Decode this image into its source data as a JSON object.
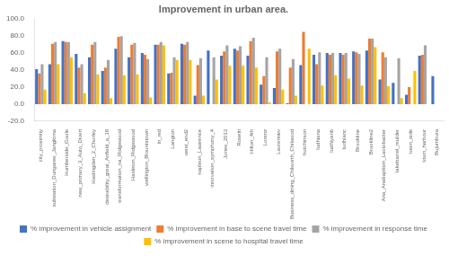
{
  "chart_data": {
    "type": "bar",
    "title": "Improvement in urban area.",
    "categories": [
      "city_proximity",
      "substation_Dungaree_Jangkirna",
      "Humberside_Goole",
      "new_primary_3_Auto_Divert",
      "Haslingden_2_Chorley",
      "desirability_great_Anfield_a_18",
      "transformation_na_Ridgewood",
      "Hasleton_Ridgewood",
      "wellington_Blountstown",
      "in_red",
      "Langton",
      "west_end2",
      "napleon_Lawrence",
      "innovation_symphony_4",
      "Jones_2013",
      "Rosetti",
      "Hilton_4th",
      "Lorenz",
      "Lavrentiev",
      "Business_dining_Chilworth_Chilwood",
      "hutchinson",
      "ludhiana",
      "ludhiyanb",
      "ludhianc",
      "Brookline",
      "Brookline2",
      "Ana_Anabaptism_Lactobacter",
      "lakebarrel_mulder",
      "town_side",
      "town_harbour",
      "Bujumbura"
    ],
    "series": [
      {
        "name": "% improvement in vehicle assignment",
        "color": "#4472c4",
        "values": [
          41,
          47,
          74,
          59,
          55,
          39,
          65,
          55,
          60,
          70,
          36,
          71,
          10,
          63,
          57,
          65,
          57,
          23,
          19,
          1,
          46,
          58,
          60,
          60,
          62,
          63,
          29,
          25,
          11,
          57,
          33
        ]
      },
      {
        "name": "% improvement in base to scene travel time",
        "color": "#ed7d31",
        "values": [
          36,
          71,
          73,
          43,
          70,
          43,
          79,
          70,
          58,
          70,
          37,
          70,
          46,
          0,
          62,
          63,
          74,
          33,
          62,
          43,
          85,
          47,
          58,
          58,
          61,
          77,
          61,
          0,
          20,
          58,
          0
        ]
      },
      {
        "name": "% improvement in response time",
        "color": "#a5a5a5",
        "values": [
          47,
          73,
          73,
          47,
          73,
          52,
          80,
          72,
          53,
          73,
          55,
          73,
          54,
          55,
          69,
          68,
          78,
          55,
          65,
          53,
          0,
          61,
          60,
          60,
          59,
          77,
          55,
          54,
          0,
          69,
          0
        ]
      },
      {
        "name": "% improvement in scene to hospital travel time",
        "color": "#ffc000",
        "values": [
          17,
          47,
          55,
          13,
          35,
          7,
          34,
          35,
          8,
          69,
          52,
          52,
          10,
          29,
          45,
          45,
          43,
          2,
          17,
          10,
          65,
          22,
          34,
          30,
          22,
          67,
          21,
          7,
          39,
          0,
          0
        ]
      }
    ],
    "ylim": [
      -20,
      100
    ],
    "yticks": [
      {
        "value": -20,
        "label": "-20.0"
      },
      {
        "value": 0,
        "label": "0.0"
      },
      {
        "value": 20,
        "label": "20.0"
      },
      {
        "value": 40,
        "label": "40.0"
      },
      {
        "value": 60,
        "label": "60.0"
      },
      {
        "value": 80,
        "label": "80.0"
      },
      {
        "value": 100,
        "label": "100.0"
      }
    ],
    "grid": false,
    "legend": "bottom"
  }
}
